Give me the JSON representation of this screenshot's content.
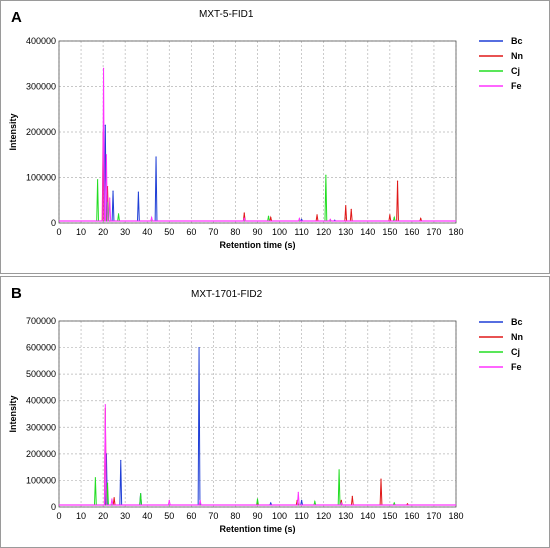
{
  "panels": [
    {
      "letter": "A",
      "title": "MXT-5-FID1",
      "xlabel": "Retention time (s)",
      "ylabel": "Intensity",
      "xticks": [
        "0",
        "10",
        "20",
        "30",
        "40",
        "50",
        "60",
        "70",
        "80",
        "90",
        "100",
        "110",
        "120",
        "130",
        "140",
        "150",
        "160",
        "170",
        "180"
      ],
      "yticks": [
        "0",
        "100000",
        "200000",
        "300000",
        "400000"
      ]
    },
    {
      "letter": "B",
      "title": "MXT-1701-FID2",
      "xlabel": "Retention time (s)",
      "ylabel": "Intensity",
      "xticks": [
        "0",
        "10",
        "20",
        "30",
        "40",
        "50",
        "60",
        "70",
        "80",
        "90",
        "100",
        "110",
        "120",
        "130",
        "140",
        "150",
        "160",
        "170",
        "180"
      ],
      "yticks": [
        "0",
        "100000",
        "200000",
        "300000",
        "400000",
        "500000",
        "600000",
        "700000"
      ]
    }
  ],
  "chart_data": [
    {
      "type": "line",
      "title": "MXT-5-FID1",
      "xlabel": "Retention time (s)",
      "ylabel": "Intensity",
      "xlim": [
        0,
        180
      ],
      "ylim": [
        0,
        400000
      ],
      "grid": true,
      "legend_position": "right",
      "series": [
        {
          "name": "Bc",
          "color": "#1f3fd6",
          "peaks": [
            [
              21,
              215000
            ],
            [
              24.5,
              70000
            ],
            [
              36,
              68000
            ],
            [
              44,
              145000
            ],
            [
              110,
              8000
            ],
            [
              125,
              6000
            ]
          ]
        },
        {
          "name": "Nn",
          "color": "#e01818",
          "peaks": [
            [
              20,
              200000
            ],
            [
              22,
              80000
            ],
            [
              84,
              22000
            ],
            [
              96,
              12000
            ],
            [
              117,
              18000
            ],
            [
              130,
              38000
            ],
            [
              132.5,
              30000
            ],
            [
              150,
              18000
            ],
            [
              153.5,
              92000
            ],
            [
              164,
              10000
            ]
          ]
        },
        {
          "name": "Cj",
          "color": "#22dd22",
          "peaks": [
            [
              17.5,
              95000
            ],
            [
              22,
              45000
            ],
            [
              27,
              20000
            ],
            [
              95,
              15000
            ],
            [
              121,
              105000
            ],
            [
              152,
              12000
            ]
          ]
        },
        {
          "name": "Fe",
          "color": "#ff33ff",
          "peaks": [
            [
              20.2,
              340000
            ],
            [
              21.5,
              150000
            ],
            [
              23,
              55000
            ],
            [
              42,
              12000
            ],
            [
              84,
              10000
            ],
            [
              109,
              10000
            ],
            [
              123,
              8000
            ]
          ]
        }
      ]
    },
    {
      "type": "line",
      "title": "MXT-1701-FID2",
      "xlabel": "Retention time (s)",
      "ylabel": "Intensity",
      "xlim": [
        0,
        180
      ],
      "ylim": [
        0,
        700000
      ],
      "grid": true,
      "legend_position": "right",
      "series": [
        {
          "name": "Bc",
          "color": "#1f3fd6",
          "peaks": [
            [
              21.5,
              200000
            ],
            [
              28,
              175000
            ],
            [
              37,
              50000
            ],
            [
              63.5,
              600000
            ],
            [
              96,
              15000
            ],
            [
              110,
              25000
            ]
          ]
        },
        {
          "name": "Nn",
          "color": "#e01818",
          "peaks": [
            [
              21,
              370000
            ],
            [
              25,
              35000
            ],
            [
              90,
              15000
            ],
            [
              108,
              25000
            ],
            [
              128,
              25000
            ],
            [
              133,
              40000
            ],
            [
              146,
              105000
            ],
            [
              158,
              12000
            ]
          ]
        },
        {
          "name": "Cj",
          "color": "#22dd22",
          "peaks": [
            [
              16.5,
              110000
            ],
            [
              22,
              90000
            ],
            [
              37,
              50000
            ],
            [
              90,
              30000
            ],
            [
              116,
              20000
            ],
            [
              127,
              140000
            ],
            [
              152,
              15000
            ]
          ]
        },
        {
          "name": "Fe",
          "color": "#ff33ff",
          "peaks": [
            [
              21,
              385000
            ],
            [
              24,
              30000
            ],
            [
              50,
              25000
            ],
            [
              64,
              25000
            ],
            [
              108.5,
              55000
            ],
            [
              128,
              15000
            ]
          ]
        }
      ]
    }
  ]
}
